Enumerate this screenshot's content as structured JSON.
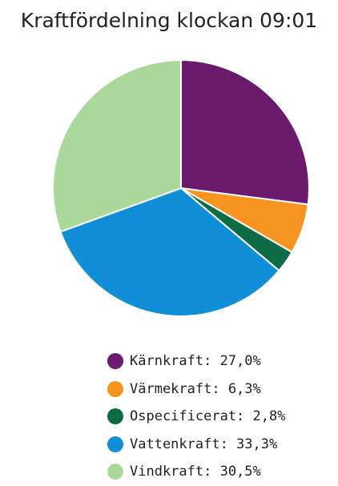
{
  "chart_data": {
    "type": "pie",
    "title": "Kraftfördelning klockan 09:01",
    "slices": [
      {
        "label": "Kärnkraft",
        "value_text": "27,0%",
        "value": 27.0,
        "color": "#6b1a6b"
      },
      {
        "label": "Värmekraft",
        "value_text": "6,3%",
        "value": 6.3,
        "color": "#f5941f"
      },
      {
        "label": "Ospecificerat",
        "value_text": "2,8%",
        "value": 2.8,
        "color": "#0d6b45"
      },
      {
        "label": "Vattenkraft",
        "value_text": "33,3%",
        "value": 33.3,
        "color": "#118fd6"
      },
      {
        "label": "Vindkraft",
        "value_text": "30,5%",
        "value": 30.5,
        "color": "#a9d89a"
      }
    ],
    "legend_position": "bottom"
  }
}
